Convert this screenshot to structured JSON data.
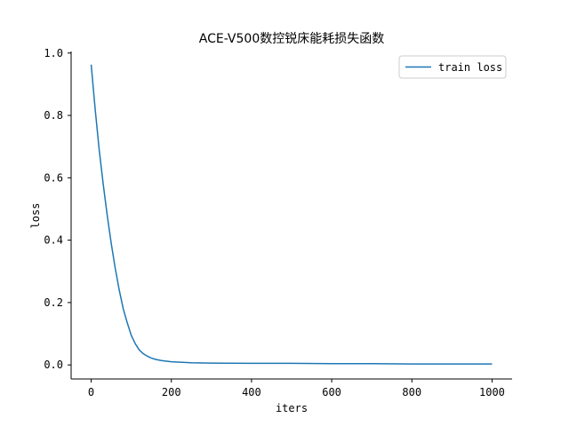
{
  "chart_data": {
    "type": "line",
    "title": "ACE-V500数控锐床能耗损失函数",
    "xlabel": "iters",
    "ylabel": "loss",
    "xlim": [
      -50,
      1050
    ],
    "ylim": [
      -0.045,
      1.005
    ],
    "xticks": [
      0,
      200,
      400,
      600,
      800,
      1000
    ],
    "yticks": [
      0.0,
      0.2,
      0.4,
      0.6,
      0.8,
      1.0
    ],
    "xtick_labels": [
      "0",
      "200",
      "400",
      "600",
      "800",
      "1000"
    ],
    "ytick_labels": [
      "0.0",
      "0.2",
      "0.4",
      "0.6",
      "0.8",
      "1.0"
    ],
    "grid": false,
    "legend_position": "top-right",
    "series": [
      {
        "name": "train loss",
        "color": "#1f77b4",
        "x": [
          0,
          10,
          20,
          30,
          40,
          50,
          60,
          70,
          80,
          90,
          100,
          110,
          120,
          130,
          140,
          150,
          160,
          175,
          200,
          250,
          300,
          400,
          500,
          600,
          700,
          800,
          900,
          1000
        ],
        "y": [
          0.963,
          0.82,
          0.69,
          0.58,
          0.48,
          0.39,
          0.31,
          0.24,
          0.18,
          0.135,
          0.095,
          0.068,
          0.048,
          0.036,
          0.028,
          0.022,
          0.018,
          0.014,
          0.01,
          0.007,
          0.006,
          0.005,
          0.005,
          0.004,
          0.004,
          0.003,
          0.003,
          0.003
        ]
      }
    ]
  }
}
